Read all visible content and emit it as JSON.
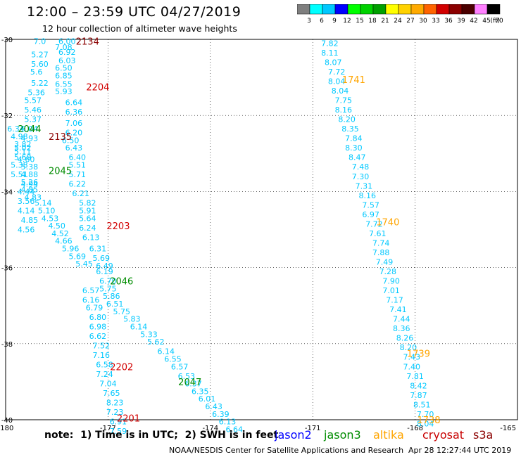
{
  "header": {
    "title": "12:00 – 23:59 UTC 04/27/2019",
    "subtitle": "12 hour collection of altimeter wave heights"
  },
  "colorbar": {
    "unit": "(ft)",
    "labels": [
      "3",
      "6",
      "9",
      "12",
      "15",
      "18",
      "21",
      "24",
      "27",
      "30",
      "33",
      "36",
      "39",
      "42",
      "45",
      "70"
    ],
    "colors": [
      "#7f7f7f",
      "#00ffff",
      "#00c8ff",
      "#0000ff",
      "#00ff00",
      "#00d200",
      "#00a000",
      "#ffff00",
      "#ffd200",
      "#ffaa00",
      "#ff6400",
      "#d20000",
      "#8b0000",
      "#4b0000",
      "#ff80ff",
      "#000000"
    ]
  },
  "note": "note:  1) Time is in UTC;  2) SWH is in feet",
  "satellites": [
    {
      "name": "jason2",
      "color": "#0000ff"
    },
    {
      "name": "jason3",
      "color": "#008c00"
    },
    {
      "name": "altika",
      "color": "#ffa500"
    },
    {
      "name": "cryosat",
      "color": "#c80000"
    },
    {
      "name": "s3a",
      "color": "#8b0000"
    }
  ],
  "footer": {
    "credit": "NOAA/NESDIS Center for Satellite Applications and Research",
    "timestamp": "Apr 28 12:27:44 UTC 2019"
  },
  "chart_data": {
    "type": "scatter",
    "x_ticks": [
      "-180",
      "-177",
      "-174",
      "-171",
      "-168",
      "-165"
    ],
    "y_ticks": [
      "-30",
      "-32",
      "-34",
      "-36",
      "-38",
      "-40"
    ],
    "xlim": [
      -180,
      -165
    ],
    "ylim": [
      -40,
      -30
    ],
    "pass_labels": [
      {
        "text": "2134",
        "lon": -177.6,
        "lat": -30.05,
        "color": "#8b0000"
      },
      {
        "text": "2135",
        "lon": -178.4,
        "lat": -32.55,
        "color": "#8b0000"
      },
      {
        "text": "2204",
        "lon": -177.3,
        "lat": -31.25,
        "color": "#d20000"
      },
      {
        "text": "2203",
        "lon": -176.7,
        "lat": -34.9,
        "color": "#d20000"
      },
      {
        "text": "2202",
        "lon": -176.6,
        "lat": -38.6,
        "color": "#d20000"
      },
      {
        "text": "2201",
        "lon": -176.4,
        "lat": -39.95,
        "color": "#d20000"
      },
      {
        "text": "2044",
        "lon": -179.3,
        "lat": -32.35,
        "color": "#008c00"
      },
      {
        "text": "2045",
        "lon": -178.4,
        "lat": -33.45,
        "color": "#008c00"
      },
      {
        "text": "2046",
        "lon": -176.6,
        "lat": -36.35,
        "color": "#008c00"
      },
      {
        "text": "2047",
        "lon": -174.6,
        "lat": -39.0,
        "color": "#008c00"
      },
      {
        "text": "1741",
        "lon": -169.8,
        "lat": -31.05,
        "color": "#ffa500"
      },
      {
        "text": "1740",
        "lon": -168.8,
        "lat": -34.8,
        "color": "#ffa500"
      },
      {
        "text": "1739",
        "lon": -167.9,
        "lat": -38.25,
        "color": "#ffa500"
      },
      {
        "text": "1738",
        "lon": -167.6,
        "lat": -40.0,
        "color": "#ffa500"
      }
    ],
    "series": [
      {
        "name": "2134",
        "color": "#00c8ff",
        "points": [
          {
            "lon": -178.2,
            "lat": -30.05,
            "v": "6.00"
          },
          {
            "lon": -178.3,
            "lat": -30.2,
            "v": "7.08"
          },
          {
            "lon": -178.2,
            "lat": -30.33,
            "v": "6.92"
          },
          {
            "lon": -178.2,
            "lat": -30.55,
            "v": "6.03"
          },
          {
            "lon": -178.3,
            "lat": -30.75,
            "v": "6.50"
          },
          {
            "lon": -178.3,
            "lat": -30.95,
            "v": "6.85"
          },
          {
            "lon": -178.3,
            "lat": -31.17,
            "v": "6.55"
          },
          {
            "lon": -178.3,
            "lat": -31.37,
            "v": "5.93"
          },
          {
            "lon": -178.0,
            "lat": -31.65,
            "v": "6.64"
          },
          {
            "lon": -178.0,
            "lat": -31.9,
            "v": "6.36"
          },
          {
            "lon": -178.0,
            "lat": -32.2,
            "v": "7.06"
          },
          {
            "lon": -178.0,
            "lat": -32.45,
            "v": "6.20"
          },
          {
            "lon": -178.1,
            "lat": -32.65,
            "v": "6.50"
          },
          {
            "lon": -178.0,
            "lat": -32.85,
            "v": "6.43"
          },
          {
            "lon": -177.9,
            "lat": -33.1,
            "v": "6.40"
          },
          {
            "lon": -177.9,
            "lat": -33.3,
            "v": "5.51"
          },
          {
            "lon": -177.9,
            "lat": -33.55,
            "v": "5.71"
          },
          {
            "lon": -177.9,
            "lat": -33.8,
            "v": "6.22"
          },
          {
            "lon": -177.8,
            "lat": -34.05,
            "v": "6.21"
          },
          {
            "lon": -177.6,
            "lat": -34.3,
            "v": "5.82"
          },
          {
            "lon": -177.6,
            "lat": -34.5,
            "v": "5.91"
          },
          {
            "lon": -177.6,
            "lat": -34.7,
            "v": "5.64"
          },
          {
            "lon": -177.6,
            "lat": -34.95,
            "v": "6.24"
          },
          {
            "lon": -177.5,
            "lat": -35.2,
            "v": "6.13"
          }
        ]
      },
      {
        "name": "2135",
        "color": "#00c8ff",
        "points": [
          {
            "lon": -179.0,
            "lat": -30.05,
            "v": "7.0"
          },
          {
            "lon": -179.0,
            "lat": -30.4,
            "v": "5.27"
          },
          {
            "lon": -179.0,
            "lat": -30.65,
            "v": "5.60"
          },
          {
            "lon": -179.1,
            "lat": -30.85,
            "v": "5.6"
          },
          {
            "lon": -179.0,
            "lat": -31.15,
            "v": "5.22"
          },
          {
            "lon": -179.1,
            "lat": -31.4,
            "v": "5.36"
          },
          {
            "lon": -179.2,
            "lat": -31.6,
            "v": "5.57"
          },
          {
            "lon": -179.2,
            "lat": -31.85,
            "v": "5.46"
          },
          {
            "lon": -179.2,
            "lat": -32.1,
            "v": "5.37"
          },
          {
            "lon": -179.3,
            "lat": -32.35,
            "v": "5.04"
          },
          {
            "lon": -179.3,
            "lat": -32.6,
            "v": "4.93"
          },
          {
            "lon": -179.5,
            "lat": -32.85,
            "v": "5.02"
          },
          {
            "lon": -179.5,
            "lat": -33.1,
            "v": "5.69"
          },
          {
            "lon": -179.6,
            "lat": -33.3,
            "v": "5.38"
          },
          {
            "lon": -179.6,
            "lat": -33.55,
            "v": "5.51"
          },
          {
            "lon": -179.3,
            "lat": -33.75,
            "v": "5.26"
          },
          {
            "lon": -179.3,
            "lat": -33.95,
            "v": "4.85"
          },
          {
            "lon": -179.2,
            "lat": -34.15,
            "v": "4.83"
          },
          {
            "lon": -178.9,
            "lat": -34.3,
            "v": "5.14"
          },
          {
            "lon": -178.8,
            "lat": -34.5,
            "v": "5.10"
          },
          {
            "lon": -178.7,
            "lat": -34.7,
            "v": "4.53"
          },
          {
            "lon": -178.5,
            "lat": -34.9,
            "v": "4.50"
          },
          {
            "lon": -178.4,
            "lat": -35.1,
            "v": "4.52"
          },
          {
            "lon": -178.3,
            "lat": -35.3,
            "v": "4.66"
          },
          {
            "lon": -178.1,
            "lat": -35.5,
            "v": "5.96"
          },
          {
            "lon": -177.9,
            "lat": -35.7,
            "v": "5.69"
          },
          {
            "lon": -177.7,
            "lat": -35.9,
            "v": "5.45"
          }
        ]
      },
      {
        "name": "2044",
        "color": "#00c8ff",
        "points": [
          {
            "lon": -179.7,
            "lat": -32.35,
            "v": "6.34"
          },
          {
            "lon": -179.6,
            "lat": -32.55,
            "v": "4.98"
          },
          {
            "lon": -179.5,
            "lat": -32.75,
            "v": "3.82"
          },
          {
            "lon": -179.5,
            "lat": -32.95,
            "v": "5.11"
          },
          {
            "lon": -179.4,
            "lat": -33.15,
            "v": "4.60"
          },
          {
            "lon": -179.3,
            "lat": -33.35,
            "v": "5.38"
          },
          {
            "lon": -179.3,
            "lat": -33.55,
            "v": "4.88"
          },
          {
            "lon": -179.3,
            "lat": -33.8,
            "v": "4.94"
          },
          {
            "lon": -179.4,
            "lat": -34.0,
            "v": "4.44"
          },
          {
            "lon": -179.4,
            "lat": -34.25,
            "v": "3.56"
          },
          {
            "lon": -179.4,
            "lat": -34.5,
            "v": "4.14"
          },
          {
            "lon": -179.3,
            "lat": -34.75,
            "v": "4.85"
          },
          {
            "lon": -179.4,
            "lat": -35.0,
            "v": "4.56"
          }
        ]
      },
      {
        "name": "2046",
        "color": "#00c8ff",
        "points": [
          {
            "lon": -177.3,
            "lat": -35.5,
            "v": "6.31"
          },
          {
            "lon": -177.2,
            "lat": -35.75,
            "v": "5.69"
          },
          {
            "lon": -177.1,
            "lat": -35.95,
            "v": "6.49"
          },
          {
            "lon": -177.1,
            "lat": -36.1,
            "v": "6.19"
          },
          {
            "lon": -177.0,
            "lat": -36.35,
            "v": "6.70"
          },
          {
            "lon": -177.0,
            "lat": -36.55,
            "v": "5.75"
          },
          {
            "lon": -176.9,
            "lat": -36.75,
            "v": "5.86"
          },
          {
            "lon": -176.8,
            "lat": -36.95,
            "v": "6.51"
          },
          {
            "lon": -176.6,
            "lat": -37.15,
            "v": "5.75"
          },
          {
            "lon": -176.3,
            "lat": -37.35,
            "v": "5.83"
          },
          {
            "lon": -176.1,
            "lat": -37.55,
            "v": "6.14"
          },
          {
            "lon": -175.8,
            "lat": -37.75,
            "v": "5.33"
          },
          {
            "lon": -175.6,
            "lat": -37.95,
            "v": "5.62"
          },
          {
            "lon": -175.3,
            "lat": -38.2,
            "v": "6.14"
          },
          {
            "lon": -175.1,
            "lat": -38.4,
            "v": "6.55"
          },
          {
            "lon": -174.9,
            "lat": -38.6,
            "v": "6.57"
          },
          {
            "lon": -174.7,
            "lat": -38.85,
            "v": "6.53"
          },
          {
            "lon": -174.5,
            "lat": -39.05,
            "v": "6.37"
          },
          {
            "lon": -174.3,
            "lat": -39.25,
            "v": "6.35"
          },
          {
            "lon": -174.1,
            "lat": -39.45,
            "v": "6.01"
          },
          {
            "lon": -173.9,
            "lat": -39.65,
            "v": "6.43"
          },
          {
            "lon": -173.7,
            "lat": -39.85,
            "v": "6.39"
          },
          {
            "lon": -173.5,
            "lat": -40.05,
            "v": "6.13"
          },
          {
            "lon": -173.3,
            "lat": -40.25,
            "v": "6.64"
          }
        ]
      },
      {
        "name": "2202",
        "color": "#00c8ff",
        "points": [
          {
            "lon": -177.5,
            "lat": -36.6,
            "v": "6.57"
          },
          {
            "lon": -177.5,
            "lat": -36.85,
            "v": "6.16"
          },
          {
            "lon": -177.4,
            "lat": -37.05,
            "v": "6.79"
          },
          {
            "lon": -177.3,
            "lat": -37.3,
            "v": "6.80"
          },
          {
            "lon": -177.3,
            "lat": -37.55,
            "v": "6.98"
          },
          {
            "lon": -177.3,
            "lat": -37.8,
            "v": "6.62"
          },
          {
            "lon": -177.2,
            "lat": -38.05,
            "v": "7.52"
          },
          {
            "lon": -177.2,
            "lat": -38.3,
            "v": "7.16"
          },
          {
            "lon": -177.1,
            "lat": -38.55,
            "v": "6.58"
          },
          {
            "lon": -177.1,
            "lat": -38.8,
            "v": "7.24"
          },
          {
            "lon": -177.0,
            "lat": -39.05,
            "v": "7.04"
          },
          {
            "lon": -176.9,
            "lat": -39.3,
            "v": "7.65"
          },
          {
            "lon": -176.8,
            "lat": -39.55,
            "v": "8.23"
          },
          {
            "lon": -176.8,
            "lat": -39.8,
            "v": "7.23"
          },
          {
            "lon": -176.7,
            "lat": -40.05,
            "v": "6.91"
          },
          {
            "lon": -176.7,
            "lat": -40.3,
            "v": "7.59"
          }
        ]
      },
      {
        "name": "1741",
        "color": "#00c8ff",
        "points": [
          {
            "lon": -170.5,
            "lat": -30.1,
            "v": "7.82"
          },
          {
            "lon": -170.5,
            "lat": -30.35,
            "v": "8.11"
          },
          {
            "lon": -170.4,
            "lat": -30.6,
            "v": "8.07"
          },
          {
            "lon": -170.3,
            "lat": -30.85,
            "v": "7.72"
          },
          {
            "lon": -170.3,
            "lat": -31.1,
            "v": "8.04"
          },
          {
            "lon": -170.2,
            "lat": -31.35,
            "v": "8.04"
          },
          {
            "lon": -170.1,
            "lat": -31.6,
            "v": "7.75"
          },
          {
            "lon": -170.1,
            "lat": -31.85,
            "v": "8.16"
          },
          {
            "lon": -170.0,
            "lat": -32.1,
            "v": "8.20"
          },
          {
            "lon": -169.9,
            "lat": -32.35,
            "v": "8.35"
          },
          {
            "lon": -169.8,
            "lat": -32.6,
            "v": "7.84"
          },
          {
            "lon": -169.8,
            "lat": -32.85,
            "v": "8.30"
          },
          {
            "lon": -169.7,
            "lat": -33.1,
            "v": "8.47"
          },
          {
            "lon": -169.6,
            "lat": -33.35,
            "v": "7.48"
          },
          {
            "lon": -169.6,
            "lat": -33.6,
            "v": "7.30"
          },
          {
            "lon": -169.5,
            "lat": -33.85,
            "v": "7.31"
          },
          {
            "lon": -169.4,
            "lat": -34.1,
            "v": "8.16"
          },
          {
            "lon": -169.3,
            "lat": -34.35,
            "v": "7.57"
          },
          {
            "lon": -169.3,
            "lat": -34.6,
            "v": "6.97"
          },
          {
            "lon": -169.2,
            "lat": -34.85,
            "v": "7.72"
          },
          {
            "lon": -169.1,
            "lat": -35.1,
            "v": "7.61"
          },
          {
            "lon": -169.0,
            "lat": -35.35,
            "v": "7.74"
          },
          {
            "lon": -169.0,
            "lat": -35.6,
            "v": "7.88"
          },
          {
            "lon": -168.9,
            "lat": -35.85,
            "v": "7.49"
          },
          {
            "lon": -168.8,
            "lat": -36.1,
            "v": "7.28"
          },
          {
            "lon": -168.7,
            "lat": -36.35,
            "v": "7.90"
          },
          {
            "lon": -168.7,
            "lat": -36.6,
            "v": "7.01"
          },
          {
            "lon": -168.6,
            "lat": -36.85,
            "v": "7.17"
          },
          {
            "lon": -168.5,
            "lat": -37.1,
            "v": "7.41"
          },
          {
            "lon": -168.4,
            "lat": -37.35,
            "v": "7.44"
          },
          {
            "lon": -168.4,
            "lat": -37.6,
            "v": "8.36"
          },
          {
            "lon": -168.3,
            "lat": -37.85,
            "v": "8.26"
          },
          {
            "lon": -168.2,
            "lat": -38.1,
            "v": "8.20"
          },
          {
            "lon": -168.1,
            "lat": -38.35,
            "v": "7.43"
          },
          {
            "lon": -168.1,
            "lat": -38.6,
            "v": "7.40"
          },
          {
            "lon": -168.0,
            "lat": -38.85,
            "v": "7.81"
          },
          {
            "lon": -167.9,
            "lat": -39.1,
            "v": "8.42"
          },
          {
            "lon": -167.9,
            "lat": -39.35,
            "v": "7.87"
          },
          {
            "lon": -167.8,
            "lat": -39.6,
            "v": "8.51"
          },
          {
            "lon": -167.7,
            "lat": -39.85,
            "v": "7.70"
          },
          {
            "lon": -167.7,
            "lat": -40.1,
            "v": "8.04"
          }
        ]
      }
    ]
  }
}
